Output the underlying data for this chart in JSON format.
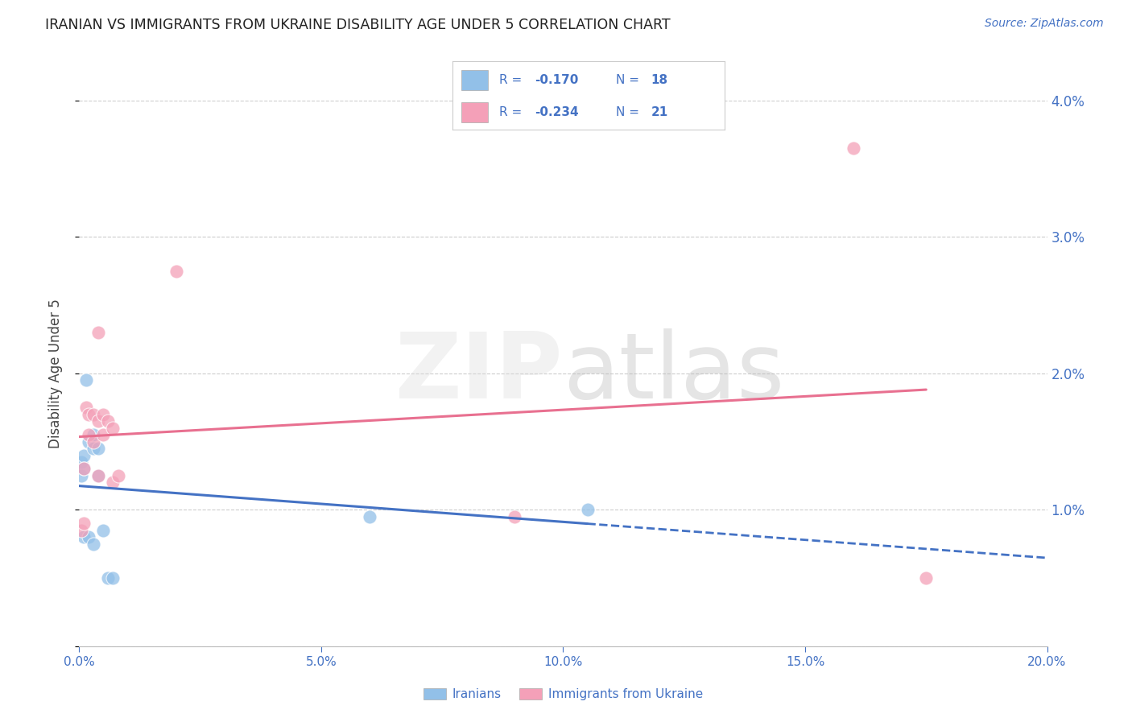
{
  "title": "IRANIAN VS IMMIGRANTS FROM UKRAINE DISABILITY AGE UNDER 5 CORRELATION CHART",
  "source": "Source: ZipAtlas.com",
  "ylabel": "Disability Age Under 5",
  "xmin": 0.0,
  "xmax": 0.2,
  "ymin": 0.0,
  "ymax": 0.04,
  "yticks": [
    0.0,
    0.01,
    0.02,
    0.03,
    0.04
  ],
  "ytick_labels_right": [
    "",
    "1.0%",
    "2.0%",
    "3.0%",
    "4.0%"
  ],
  "xticks": [
    0.0,
    0.05,
    0.1,
    0.15,
    0.2
  ],
  "xtick_labels": [
    "0.0%",
    "5.0%",
    "10.0%",
    "15.0%",
    "20.0%"
  ],
  "iranians_x": [
    0.0005,
    0.0005,
    0.001,
    0.001,
    0.001,
    0.0015,
    0.002,
    0.002,
    0.003,
    0.003,
    0.003,
    0.004,
    0.004,
    0.005,
    0.006,
    0.007,
    0.06,
    0.105
  ],
  "iranians_y": [
    0.0135,
    0.0125,
    0.014,
    0.013,
    0.008,
    0.0195,
    0.015,
    0.008,
    0.0155,
    0.0145,
    0.0075,
    0.0145,
    0.0125,
    0.0085,
    0.005,
    0.005,
    0.0095,
    0.01
  ],
  "ukraine_x": [
    0.0005,
    0.001,
    0.001,
    0.0015,
    0.002,
    0.002,
    0.003,
    0.003,
    0.004,
    0.004,
    0.004,
    0.005,
    0.005,
    0.006,
    0.007,
    0.007,
    0.008,
    0.02,
    0.09,
    0.16,
    0.175
  ],
  "ukraine_y": [
    0.0085,
    0.009,
    0.013,
    0.0175,
    0.017,
    0.0155,
    0.017,
    0.015,
    0.023,
    0.0165,
    0.0125,
    0.017,
    0.0155,
    0.0165,
    0.016,
    0.012,
    0.0125,
    0.0275,
    0.0095,
    0.0365,
    0.005
  ],
  "iranian_R": -0.17,
  "iranian_N": 18,
  "ukraine_R": -0.234,
  "ukraine_N": 21,
  "color_iranian": "#92C0E8",
  "color_ukraine": "#F4A0B8",
  "color_iranian_line": "#4472C4",
  "color_ukraine_line": "#E87090",
  "background_color": "#FFFFFF",
  "grid_color": "#CCCCCC",
  "axis_color": "#4472C4",
  "title_color": "#222222",
  "legend_text_color": "#333333"
}
